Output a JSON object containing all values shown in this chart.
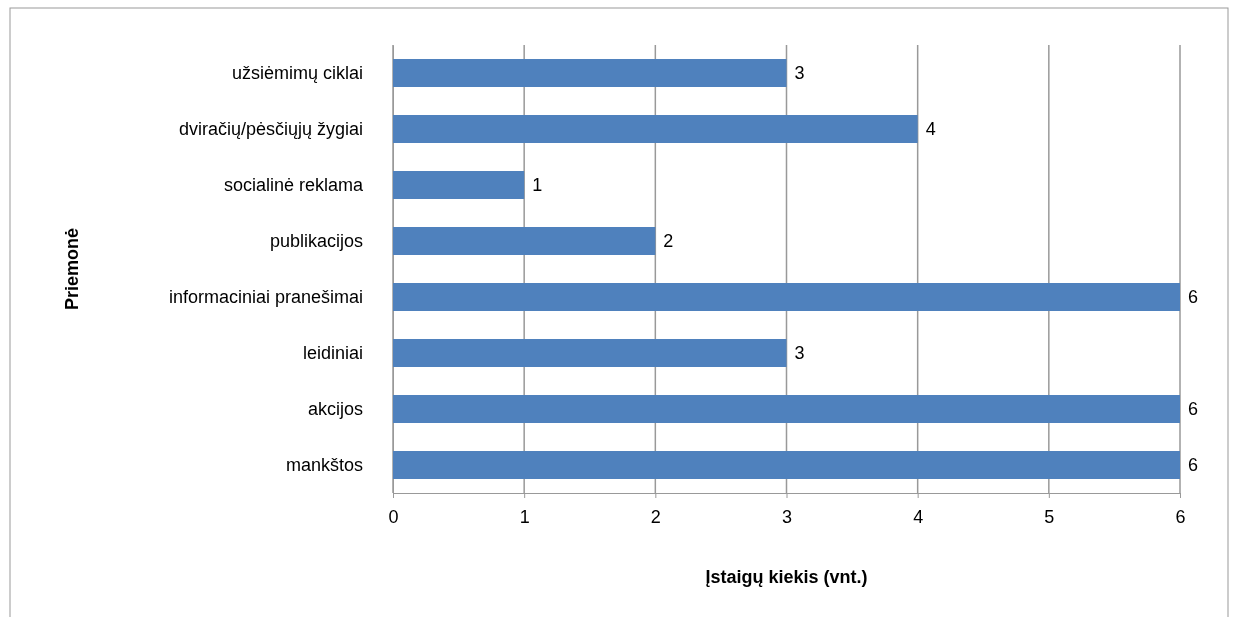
{
  "chart_data": {
    "type": "bar",
    "orientation": "horizontal",
    "xlabel": "Įstaigų kiekis (vnt.)",
    "ylabel": "Priemonė",
    "categories": [
      "užsiėmimų ciklai",
      "dviračių/pėsčiųjų žygiai",
      "socialinė reklama",
      "publikacijos",
      "informaciniai pranešimai",
      "leidiniai",
      "akcijos",
      "mankštos"
    ],
    "values": [
      3,
      4,
      1,
      2,
      6,
      3,
      6,
      6
    ],
    "color": "#4f81bd",
    "xlim": [
      0,
      6
    ],
    "xticks": [
      0,
      1,
      2,
      3,
      4,
      5,
      6
    ],
    "grid": "x",
    "data_labels": true
  }
}
